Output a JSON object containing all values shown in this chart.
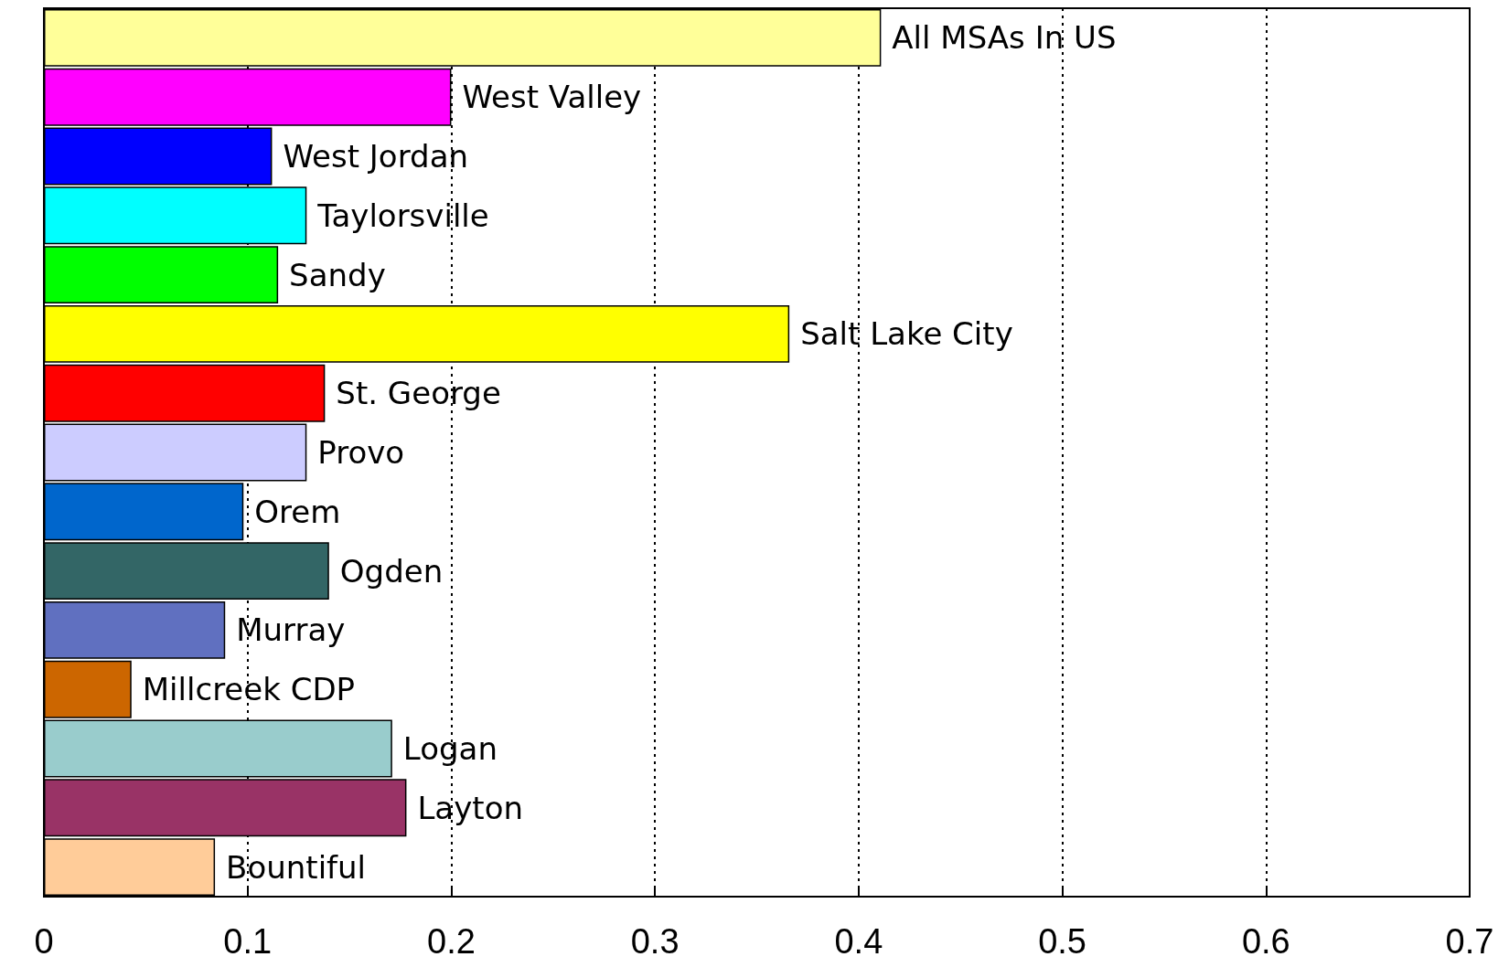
{
  "chart_data": {
    "type": "bar",
    "orientation": "horizontal",
    "categories": [
      "All MSAs In US",
      "West Valley",
      "West Jordan",
      "Taylorsville",
      "Sandy",
      "Salt Lake City",
      "St. George",
      "Provo",
      "Orem",
      "Ogden",
      "Murray",
      "Millcreek CDP",
      "Logan",
      "Layton",
      "Bountiful"
    ],
    "values": [
      0.411,
      0.2,
      0.112,
      0.129,
      0.115,
      0.366,
      0.138,
      0.129,
      0.098,
      0.14,
      0.089,
      0.043,
      0.171,
      0.178,
      0.084
    ],
    "colors": [
      "#ffff99",
      "#ff00ff",
      "#0000ff",
      "#00ffff",
      "#00ff00",
      "#ffff00",
      "#ff0000",
      "#ccccff",
      "#0066cc",
      "#336666",
      "#6070c0",
      "#cc6600",
      "#99cccc",
      "#993366",
      "#ffcc99"
    ],
    "xlim": [
      0,
      0.7
    ],
    "xticks": [
      0,
      0.1,
      0.2,
      0.3,
      0.4,
      0.5,
      0.6,
      0.7
    ],
    "grid": "x",
    "tick_labels": "x"
  }
}
